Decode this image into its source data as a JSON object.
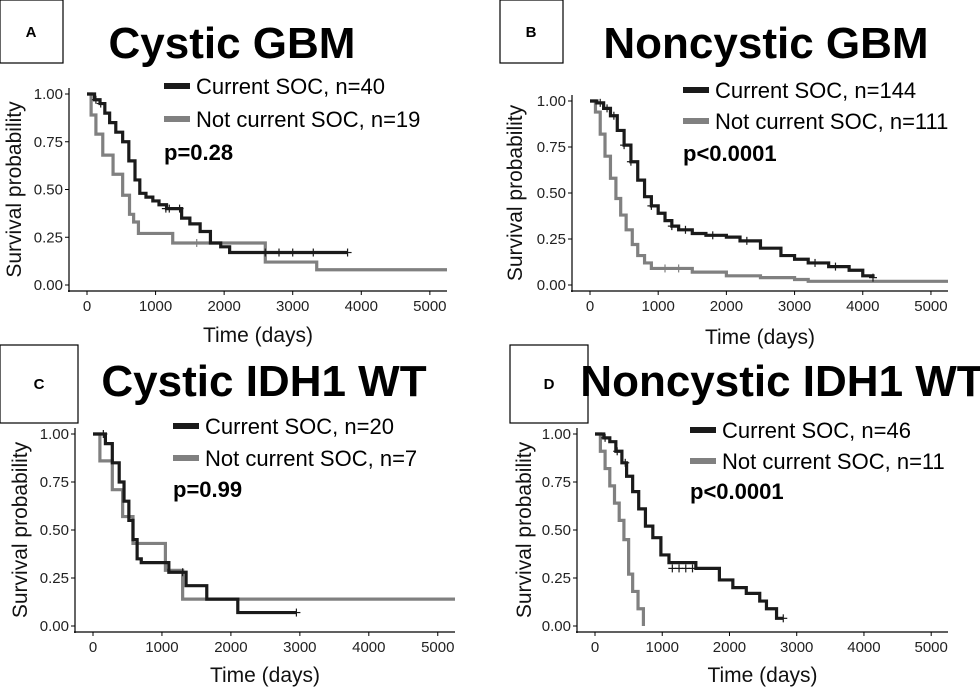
{
  "colors": {
    "current": "#1a1a1a",
    "not_current": "#808080",
    "axis": "#000000"
  },
  "chart_data": [
    {
      "id": "A",
      "type": "line",
      "letter": "A",
      "title": "Cystic GBM",
      "xlabel": "Time (days)",
      "ylabel": "Survival probability",
      "xlim": [
        0,
        5250
      ],
      "ylim": [
        0,
        1
      ],
      "xticks": [
        0,
        1000,
        2000,
        3000,
        4000,
        5000
      ],
      "yticks": [
        0,
        0.25,
        0.5,
        0.75,
        1
      ],
      "ytick_labels": [
        "0.00",
        "0.25",
        "0.50",
        "0.75",
        "1.00"
      ],
      "p_value": "p=0.28",
      "series": [
        {
          "name": "Current SOC, n=40",
          "color": "#1a1a1a",
          "x": [
            0,
            110,
            190,
            260,
            330,
            420,
            520,
            610,
            700,
            770,
            860,
            960,
            1050,
            1160,
            1380,
            1500,
            1650,
            1800,
            1950,
            2080,
            3800
          ],
          "y": [
            1.0,
            0.97,
            0.95,
            0.9,
            0.85,
            0.8,
            0.75,
            0.65,
            0.55,
            0.48,
            0.46,
            0.44,
            0.42,
            0.4,
            0.35,
            0.32,
            0.28,
            0.22,
            0.2,
            0.17,
            0.17
          ],
          "censor_x": [
            130,
            200,
            1150,
            1200,
            1350,
            2600,
            2800,
            3000,
            3300,
            3800
          ],
          "censor_y": [
            0.97,
            0.95,
            0.4,
            0.4,
            0.4,
            0.17,
            0.17,
            0.17,
            0.17,
            0.17
          ]
        },
        {
          "name": "Not current SOC, n=19",
          "color": "#808080",
          "x": [
            0,
            60,
            130,
            230,
            380,
            520,
            620,
            680,
            750,
            1250,
            1750,
            2600,
            3350,
            5250
          ],
          "y": [
            1.0,
            0.89,
            0.79,
            0.68,
            0.58,
            0.47,
            0.37,
            0.33,
            0.27,
            0.22,
            0.22,
            0.12,
            0.08,
            0.08
          ],
          "censor_x": [
            1600
          ],
          "censor_y": [
            0.22
          ]
        }
      ]
    },
    {
      "id": "B",
      "type": "line",
      "letter": "B",
      "title": "Noncystic GBM",
      "xlabel": "Time (days)",
      "ylabel": "Survival probability",
      "xlim": [
        0,
        5250
      ],
      "ylim": [
        0,
        1
      ],
      "xticks": [
        0,
        1000,
        2000,
        3000,
        4000,
        5000
      ],
      "yticks": [
        0,
        0.25,
        0.5,
        0.75,
        1
      ],
      "ytick_labels": [
        "0.00",
        "0.25",
        "0.50",
        "0.75",
        "1.00"
      ],
      "p_value": "p<0.0001",
      "series": [
        {
          "name": "Current SOC, n=144",
          "color": "#1a1a1a",
          "x": [
            0,
            100,
            200,
            300,
            400,
            500,
            600,
            700,
            800,
            900,
            1000,
            1100,
            1200,
            1300,
            1500,
            1700,
            2000,
            2200,
            2500,
            2800,
            3000,
            3200,
            3500,
            3800,
            4000,
            4150
          ],
          "y": [
            1.0,
            0.99,
            0.96,
            0.92,
            0.84,
            0.76,
            0.67,
            0.57,
            0.48,
            0.43,
            0.39,
            0.35,
            0.32,
            0.3,
            0.28,
            0.27,
            0.26,
            0.24,
            0.2,
            0.16,
            0.14,
            0.12,
            0.1,
            0.08,
            0.05,
            0.04
          ],
          "censor_x": [
            150,
            250,
            350,
            500,
            600,
            900,
            1200,
            1400,
            1800,
            2300,
            3300,
            3600,
            4150
          ],
          "censor_y": [
            0.99,
            0.96,
            0.92,
            0.76,
            0.67,
            0.43,
            0.32,
            0.3,
            0.27,
            0.24,
            0.12,
            0.1,
            0.04
          ]
        },
        {
          "name": "Not current SOC, n=111",
          "color": "#808080",
          "x": [
            0,
            80,
            150,
            220,
            300,
            380,
            450,
            530,
            620,
            700,
            800,
            900,
            1300,
            1500,
            2000,
            2500,
            3000,
            3200,
            3500,
            5250
          ],
          "y": [
            1.0,
            0.94,
            0.82,
            0.7,
            0.58,
            0.47,
            0.38,
            0.3,
            0.22,
            0.16,
            0.12,
            0.09,
            0.09,
            0.07,
            0.05,
            0.04,
            0.03,
            0.02,
            0.02,
            0.02
          ],
          "censor_x": [
            1100,
            1300
          ],
          "censor_y": [
            0.09,
            0.09
          ]
        }
      ]
    },
    {
      "id": "C",
      "type": "line",
      "letter": "C",
      "title": "Cystic IDH1 WT",
      "xlabel": "Time (days)",
      "ylabel": "Survival probability",
      "xlim": [
        0,
        5250
      ],
      "ylim": [
        0,
        1
      ],
      "xticks": [
        0,
        1000,
        2000,
        3000,
        4000,
        5000
      ],
      "yticks": [
        0,
        0.25,
        0.5,
        0.75,
        1
      ],
      "ytick_labels": [
        "0.00",
        "0.25",
        "0.50",
        "0.75",
        "1.00"
      ],
      "p_value": "p=0.99",
      "series": [
        {
          "name": "Current SOC, n=20",
          "color": "#1a1a1a",
          "x": [
            0,
            180,
            280,
            380,
            450,
            520,
            580,
            640,
            700,
            800,
            1100,
            1250,
            1350,
            1650,
            2100,
            2950
          ],
          "y": [
            1.0,
            0.95,
            0.85,
            0.75,
            0.65,
            0.55,
            0.45,
            0.35,
            0.33,
            0.33,
            0.28,
            0.28,
            0.21,
            0.14,
            0.07,
            0.07
          ],
          "censor_x": [
            150,
            1300,
            2950
          ],
          "censor_y": [
            1.0,
            0.28,
            0.07
          ]
        },
        {
          "name": "Not current SOC, n=7",
          "color": "#808080",
          "x": [
            0,
            100,
            280,
            430,
            580,
            720,
            1050,
            1300,
            5250
          ],
          "y": [
            1.0,
            0.86,
            0.71,
            0.57,
            0.43,
            0.43,
            0.29,
            0.14,
            0.14
          ],
          "censor_x": [],
          "censor_y": []
        }
      ]
    },
    {
      "id": "D",
      "type": "line",
      "letter": "D",
      "title": "Noncystic IDH1 WT",
      "xlabel": "Time (days)",
      "ylabel": "Survival probability",
      "xlim": [
        0,
        5250
      ],
      "ylim": [
        0,
        1
      ],
      "xticks": [
        0,
        1000,
        2000,
        3000,
        4000,
        5000
      ],
      "yticks": [
        0,
        0.25,
        0.5,
        0.75,
        1
      ],
      "ytick_labels": [
        "0.00",
        "0.25",
        "0.50",
        "0.75",
        "1.00"
      ],
      "p_value": "p<0.0001",
      "series": [
        {
          "name": "Current SOC, n=46",
          "color": "#1a1a1a",
          "x": [
            0,
            130,
            220,
            310,
            400,
            470,
            560,
            650,
            750,
            860,
            980,
            1100,
            1500,
            1850,
            2050,
            2250,
            2450,
            2550,
            2700,
            2800
          ],
          "y": [
            1.0,
            0.98,
            0.96,
            0.91,
            0.85,
            0.78,
            0.7,
            0.61,
            0.52,
            0.46,
            0.37,
            0.33,
            0.3,
            0.24,
            0.2,
            0.17,
            0.13,
            0.09,
            0.04,
            0.04
          ],
          "censor_x": [
            150,
            330,
            450,
            1150,
            1250,
            1350,
            1450,
            2800
          ],
          "censor_y": [
            0.98,
            0.91,
            0.85,
            0.3,
            0.3,
            0.3,
            0.3,
            0.04
          ]
        },
        {
          "name": "Not current SOC, n=11",
          "color": "#808080",
          "x": [
            0,
            80,
            150,
            220,
            290,
            360,
            430,
            500,
            560,
            640,
            720
          ],
          "y": [
            1.0,
            0.91,
            0.82,
            0.73,
            0.64,
            0.55,
            0.45,
            0.27,
            0.18,
            0.09,
            0.0
          ],
          "censor_x": [],
          "censor_y": []
        }
      ]
    }
  ]
}
